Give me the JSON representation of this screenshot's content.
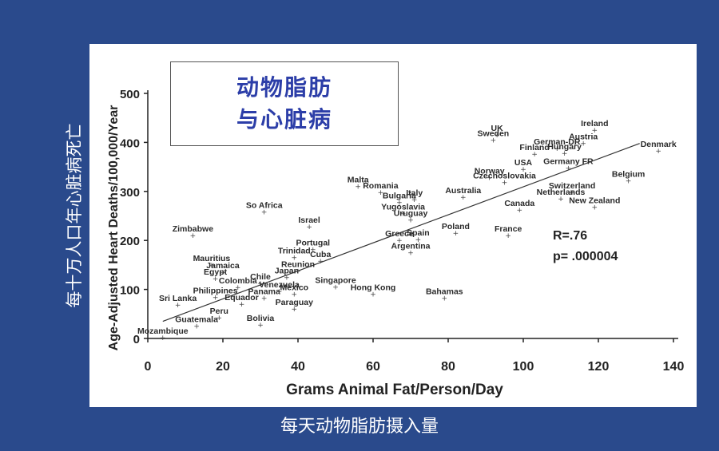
{
  "overlay": {
    "title_line1": "动物脂肪",
    "title_line2": "与心脏病",
    "y_label_cn": "每十万人口年心脏病死亡",
    "x_label_cn": "每天动物脂肪摄入量"
  },
  "chart_data": {
    "type": "scatter",
    "xlabel": "Grams Animal Fat/Person/Day",
    "ylabel": "Age-Adjusted Heart Deaths/100,000/Year",
    "xlim": [
      0,
      140
    ],
    "ylim": [
      0,
      500
    ],
    "xticks": [
      0,
      20,
      40,
      60,
      80,
      100,
      120,
      140
    ],
    "yticks": [
      0,
      100,
      200,
      300,
      400,
      500
    ],
    "stats": {
      "r": "R=.76",
      "p": "p= .000004"
    },
    "trendline": [
      [
        4,
        35
      ],
      [
        131,
        398
      ]
    ],
    "points": [
      {
        "label": "Mozambique",
        "x": 4,
        "y": 2
      },
      {
        "label": "Sri Lanka",
        "x": 8,
        "y": 68
      },
      {
        "label": "Guatemala",
        "x": 13,
        "y": 25
      },
      {
        "label": "Zimbabwe",
        "x": 12,
        "y": 210
      },
      {
        "label": "Mauritius",
        "x": 17,
        "y": 150
      },
      {
        "label": "Jamaica",
        "x": 20,
        "y": 135
      },
      {
        "label": "Egypt",
        "x": 18,
        "y": 122
      },
      {
        "label": "Philippines",
        "x": 18,
        "y": 84
      },
      {
        "label": "Peru",
        "x": 19,
        "y": 42
      },
      {
        "label": "Colombia",
        "x": 24,
        "y": 104
      },
      {
        "label": "Chile",
        "x": 30,
        "y": 112
      },
      {
        "label": "Panama",
        "x": 31,
        "y": 82
      },
      {
        "label": "Equador",
        "x": 25,
        "y": 70
      },
      {
        "label": "Bolivia",
        "x": 30,
        "y": 28
      },
      {
        "label": "So Africa",
        "x": 31,
        "y": 258
      },
      {
        "label": "Japan",
        "x": 37,
        "y": 125
      },
      {
        "label": "Venezuela",
        "x": 35,
        "y": 96
      },
      {
        "label": "Mexico",
        "x": 39,
        "y": 90
      },
      {
        "label": "Paraguay",
        "x": 39,
        "y": 60
      },
      {
        "label": "Trinidad",
        "x": 39,
        "y": 165
      },
      {
        "label": "Reunion",
        "x": 40,
        "y": 138
      },
      {
        "label": "Israel",
        "x": 43,
        "y": 228
      },
      {
        "label": "Portugal",
        "x": 44,
        "y": 182
      },
      {
        "label": "Cuba",
        "x": 46,
        "y": 158
      },
      {
        "label": "Singapore",
        "x": 50,
        "y": 105
      },
      {
        "label": "Hong Kong",
        "x": 60,
        "y": 90
      },
      {
        "label": "Malta",
        "x": 56,
        "y": 310
      },
      {
        "label": "Romania",
        "x": 62,
        "y": 298
      },
      {
        "label": "Bulgaria",
        "x": 67,
        "y": 278
      },
      {
        "label": "Yugoslavia",
        "x": 68,
        "y": 255
      },
      {
        "label": "Italy",
        "x": 71,
        "y": 283
      },
      {
        "label": "Uruguay",
        "x": 70,
        "y": 242
      },
      {
        "label": "Greece",
        "x": 67,
        "y": 200
      },
      {
        "label": "Argentina",
        "x": 70,
        "y": 175
      },
      {
        "label": "Spain",
        "x": 72,
        "y": 202
      },
      {
        "label": "Poland",
        "x": 82,
        "y": 215
      },
      {
        "label": "Australia",
        "x": 84,
        "y": 288
      },
      {
        "label": "Bahamas",
        "x": 79,
        "y": 82
      },
      {
        "label": "Sweden",
        "x": 92,
        "y": 405
      },
      {
        "label": "UK",
        "x": 93,
        "y": 415
      },
      {
        "label": "Norway",
        "x": 91,
        "y": 328
      },
      {
        "label": "Czechoslovakia",
        "x": 95,
        "y": 318
      },
      {
        "label": "Finland",
        "x": 103,
        "y": 376
      },
      {
        "label": "USA",
        "x": 100,
        "y": 345
      },
      {
        "label": "Germany FR",
        "x": 112,
        "y": 348
      },
      {
        "label": "German-DR",
        "x": 109,
        "y": 388
      },
      {
        "label": "Hungary",
        "x": 111,
        "y": 378
      },
      {
        "label": "Austria",
        "x": 116,
        "y": 398
      },
      {
        "label": "Ireland",
        "x": 119,
        "y": 425
      },
      {
        "label": "Switzerland",
        "x": 113,
        "y": 298
      },
      {
        "label": "Netherlands",
        "x": 110,
        "y": 285
      },
      {
        "label": "Canada",
        "x": 99,
        "y": 262
      },
      {
        "label": "New Zealand",
        "x": 119,
        "y": 268
      },
      {
        "label": "France",
        "x": 96,
        "y": 210
      },
      {
        "label": "Belgium",
        "x": 128,
        "y": 322
      },
      {
        "label": "Denmark",
        "x": 136,
        "y": 383
      }
    ]
  }
}
